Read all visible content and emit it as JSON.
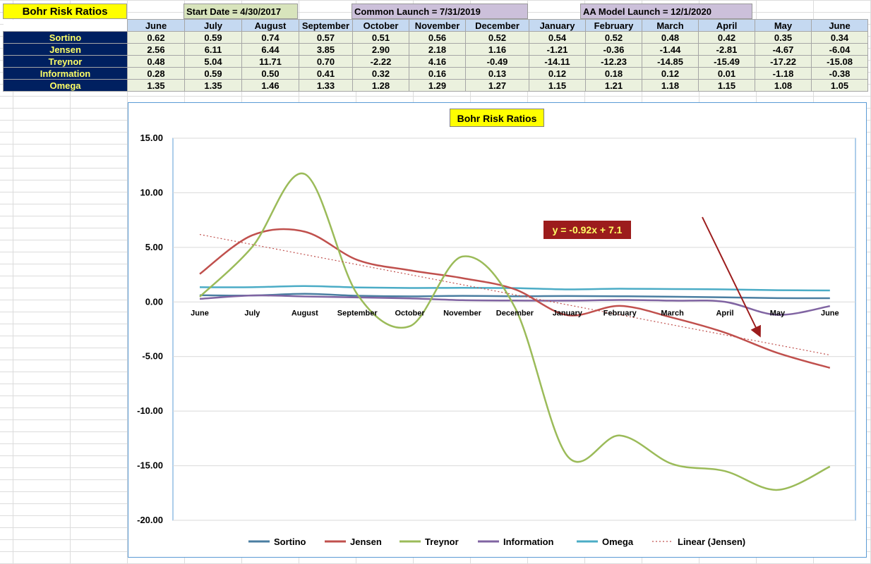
{
  "sheet": {
    "title": "Bohr Risk Ratios",
    "start_date": "Start Date = 4/30/2017",
    "common_launch": "Common Launch = 7/31/2019",
    "aa_model_launch": "AA Model Launch = 12/1/2020"
  },
  "table": {
    "months": [
      "June",
      "July",
      "August",
      "September",
      "October",
      "November",
      "December",
      "January",
      "February",
      "March",
      "April",
      "May",
      "June"
    ],
    "rows": [
      {
        "label": "Sortino",
        "values": [
          "0.62",
          "0.59",
          "0.74",
          "0.57",
          "0.51",
          "0.56",
          "0.52",
          "0.54",
          "0.52",
          "0.48",
          "0.42",
          "0.35",
          "0.34"
        ]
      },
      {
        "label": "Jensen",
        "values": [
          "2.56",
          "6.11",
          "6.44",
          "3.85",
          "2.90",
          "2.18",
          "1.16",
          "-1.21",
          "-0.36",
          "-1.44",
          "-2.81",
          "-4.67",
          "-6.04"
        ]
      },
      {
        "label": "Treynor",
        "values": [
          "0.48",
          "5.04",
          "11.71",
          "0.70",
          "-2.22",
          "4.16",
          "-0.49",
          "-14.11",
          "-12.23",
          "-14.85",
          "-15.49",
          "-17.22",
          "-15.08"
        ]
      },
      {
        "label": "Information",
        "values": [
          "0.28",
          "0.59",
          "0.50",
          "0.41",
          "0.32",
          "0.16",
          "0.13",
          "0.12",
          "0.18",
          "0.12",
          "0.01",
          "-1.18",
          "-0.38"
        ]
      },
      {
        "label": "Omega",
        "values": [
          "1.35",
          "1.35",
          "1.46",
          "1.33",
          "1.28",
          "1.29",
          "1.27",
          "1.15",
          "1.21",
          "1.18",
          "1.15",
          "1.08",
          "1.05"
        ]
      }
    ]
  },
  "chart_data": {
    "type": "line",
    "title": "Bohr Risk Ratios",
    "categories": [
      "June",
      "July",
      "August",
      "September",
      "October",
      "November",
      "December",
      "January",
      "February",
      "March",
      "April",
      "May",
      "June"
    ],
    "ylim": [
      -20,
      15
    ],
    "yticks": [
      "15.00",
      "10.00",
      "5.00",
      "0.00",
      "-5.00",
      "-10.00",
      "-15.00",
      "-20.00"
    ],
    "ytick_values": [
      15,
      10,
      5,
      0,
      -5,
      -10,
      -15,
      -20
    ],
    "grid": true,
    "legend_position": "bottom",
    "series": [
      {
        "name": "Sortino",
        "color": "#4a7ea1",
        "values": [
          0.62,
          0.59,
          0.74,
          0.57,
          0.51,
          0.56,
          0.52,
          0.54,
          0.52,
          0.48,
          0.42,
          0.35,
          0.34
        ]
      },
      {
        "name": "Jensen",
        "color": "#c0504d",
        "values": [
          2.56,
          6.11,
          6.44,
          3.85,
          2.9,
          2.18,
          1.16,
          -1.21,
          -0.36,
          -1.44,
          -2.81,
          -4.67,
          -6.04
        ]
      },
      {
        "name": "Treynor",
        "color": "#9bbb59",
        "values": [
          0.48,
          5.04,
          11.71,
          0.7,
          -2.22,
          4.16,
          -0.49,
          -14.11,
          -12.23,
          -14.85,
          -15.49,
          -17.22,
          -15.08
        ]
      },
      {
        "name": "Information",
        "color": "#8064a2",
        "values": [
          0.28,
          0.59,
          0.5,
          0.41,
          0.32,
          0.16,
          0.13,
          0.12,
          0.18,
          0.12,
          0.01,
          -1.18,
          -0.38
        ]
      },
      {
        "name": "Omega",
        "color": "#4bacc6",
        "values": [
          1.35,
          1.35,
          1.46,
          1.33,
          1.28,
          1.29,
          1.27,
          1.15,
          1.21,
          1.18,
          1.15,
          1.08,
          1.05
        ]
      }
    ],
    "trendline": {
      "name": "Linear (Jensen)",
      "color": "#c0504d",
      "slope": -0.92,
      "intercept": 7.1,
      "equation": "y = -0.92x + 7.1"
    },
    "annotation": {
      "type": "arrow",
      "color": "#9c1c1c",
      "points_to": "Jensen trend",
      "label_color": "#9c1c1c"
    }
  }
}
